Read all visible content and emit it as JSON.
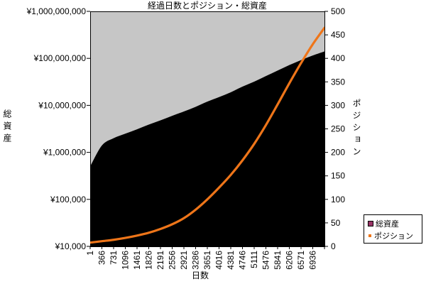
{
  "window": {
    "background": "#ffffff"
  },
  "chart_data": {
    "type": "combo-area-line",
    "title": "経過日数とポジション・総資産",
    "plot_background": "#c6c6c6",
    "axis_color": "#000000",
    "x": [
      1,
      366,
      731,
      1096,
      1461,
      1826,
      2191,
      2556,
      2921,
      3286,
      3651,
      4016,
      4381,
      4746,
      5111,
      5476,
      5841,
      6206,
      6571,
      6936,
      7301
    ],
    "x_axis": {
      "title": "日数",
      "min": 1,
      "max": 7301,
      "tick_labels": [
        "1",
        "366",
        "731",
        "1096",
        "1461",
        "1826",
        "2191",
        "2556",
        "2921",
        "3286",
        "3651",
        "4016",
        "4381",
        "4746",
        "5111",
        "5476",
        "5841",
        "6206",
        "6571",
        "6936"
      ],
      "tick_values": [
        1,
        366,
        731,
        1096,
        1461,
        1826,
        2191,
        2556,
        2921,
        3286,
        3651,
        4016,
        4381,
        4746,
        5111,
        5476,
        5841,
        6206,
        6571,
        6936
      ]
    },
    "y_left_axis": {
      "title": "総資産",
      "scale": "log",
      "min": 10000,
      "max": 1000000000,
      "tick_labels": [
        "¥1,000,000,000",
        "¥100,000,000",
        "¥10,000,000",
        "¥1,000,000",
        "¥100,000",
        "¥10,000"
      ],
      "tick_values": [
        1000000000,
        100000000,
        10000000,
        1000000,
        100000,
        10000
      ]
    },
    "y_right_axis": {
      "title": "ポジション",
      "scale": "linear",
      "min": 0,
      "max": 500,
      "tick_labels": [
        "500",
        "450",
        "400",
        "350",
        "300",
        "250",
        "200",
        "150",
        "100",
        "50",
        "0"
      ],
      "tick_values": [
        500,
        450,
        400,
        350,
        300,
        250,
        200,
        150,
        100,
        50,
        0
      ]
    },
    "series": [
      {
        "name": "総資産",
        "type": "area",
        "axis": "left",
        "color": "#000000",
        "values": [
          500000,
          1400000,
          2000000,
          2500000,
          3100000,
          3900000,
          4800000,
          6000000,
          7400000,
          9300000,
          12000000,
          15000000,
          19000000,
          25000000,
          32000000,
          42000000,
          55000000,
          72000000,
          92000000,
          115000000,
          140000000
        ]
      },
      {
        "name": "ポジション",
        "type": "line",
        "axis": "right",
        "color": "#ee7519",
        "values": [
          8,
          11,
          14,
          18,
          23,
          29,
          37,
          47,
          60,
          78,
          100,
          125,
          152,
          183,
          218,
          258,
          302,
          347,
          390,
          430,
          465
        ]
      }
    ],
    "legend": {
      "position": "bottom-right",
      "items": [
        {
          "label": "総資産",
          "marker": "square",
          "color": "#993366"
        },
        {
          "label": "ポジション",
          "marker": "dot",
          "color": "#ee7519"
        }
      ]
    }
  }
}
